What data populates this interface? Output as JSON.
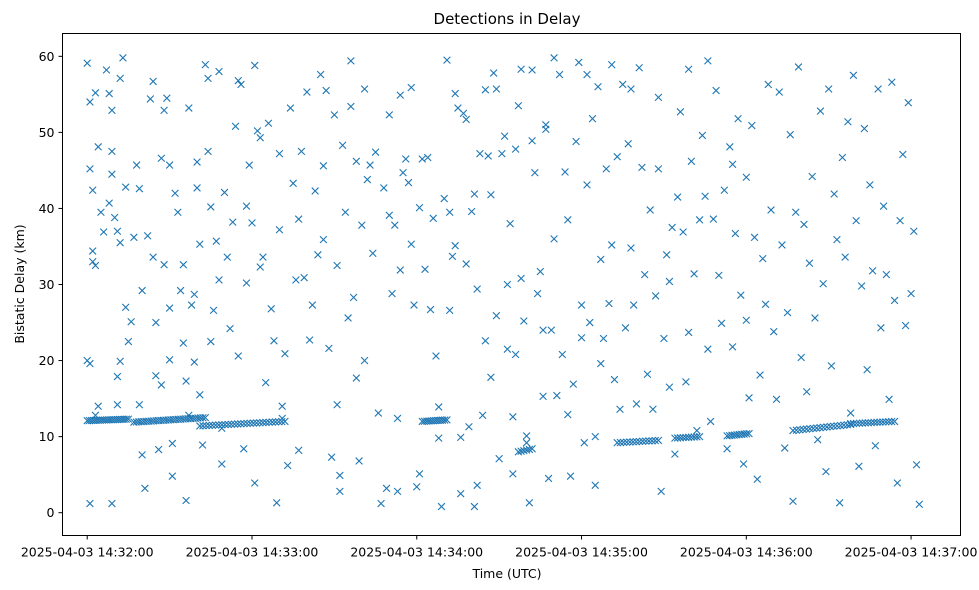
{
  "chart_data": {
    "type": "scatter",
    "title": "Detections in Delay",
    "xlabel": "Time (UTC)",
    "ylabel": "Bistatic Delay (km)",
    "marker": "x",
    "color": "#1f77b4",
    "x_unit": "seconds since 2025-04-03 14:32:00",
    "xlim": [
      -9,
      318
    ],
    "ylim": [
      -3,
      63
    ],
    "x_ticks": [
      {
        "value": 0,
        "label": "2025-04-03 14:32:00"
      },
      {
        "value": 60,
        "label": "2025-04-03 14:33:00"
      },
      {
        "value": 120,
        "label": "2025-04-03 14:34:00"
      },
      {
        "value": 180,
        "label": "2025-04-03 14:35:00"
      },
      {
        "value": 240,
        "label": "2025-04-03 14:36:00"
      },
      {
        "value": 300,
        "label": "2025-04-03 14:37:00"
      }
    ],
    "y_ticks": [
      0,
      10,
      20,
      30,
      40,
      50,
      60
    ],
    "grid": false,
    "legend": "none",
    "track_segments": [
      {
        "t_start": 0,
        "t_end": 15,
        "delay_start": 12.1,
        "delay_end": 12.3,
        "count": 20
      },
      {
        "t_start": 17,
        "t_end": 43,
        "delay_start": 11.9,
        "delay_end": 12.5,
        "count": 30
      },
      {
        "t_start": 41,
        "t_end": 72,
        "delay_start": 11.4,
        "delay_end": 12.0,
        "count": 28
      },
      {
        "t_start": 122,
        "t_end": 131,
        "delay_start": 12.0,
        "delay_end": 12.2,
        "count": 12
      },
      {
        "t_start": 157,
        "t_end": 162,
        "delay_start": 8.0,
        "delay_end": 8.4,
        "count": 6
      },
      {
        "t_start": 193,
        "t_end": 208,
        "delay_start": 9.2,
        "delay_end": 9.5,
        "count": 14
      },
      {
        "t_start": 214,
        "t_end": 223,
        "delay_start": 9.8,
        "delay_end": 10.0,
        "count": 10
      },
      {
        "t_start": 233,
        "t_end": 241,
        "delay_start": 10.1,
        "delay_end": 10.4,
        "count": 10
      },
      {
        "t_start": 257,
        "t_end": 278,
        "delay_start": 10.8,
        "delay_end": 11.6,
        "count": 18
      },
      {
        "t_start": 278,
        "t_end": 294,
        "delay_start": 11.7,
        "delay_end": 12.0,
        "count": 16
      }
    ],
    "scatter_points": [
      [
        0,
        59.1
      ],
      [
        1,
        45.2
      ],
      [
        0,
        20
      ],
      [
        1,
        19.6
      ],
      [
        2,
        34.4
      ],
      [
        2,
        42.4
      ],
      [
        1,
        54
      ],
      [
        3,
        55.2
      ],
      [
        4,
        48.1
      ],
      [
        2,
        33
      ],
      [
        3,
        32.5
      ],
      [
        4,
        14
      ],
      [
        3,
        12.8
      ],
      [
        1,
        1.2
      ],
      [
        5,
        39.5
      ],
      [
        6,
        36.9
      ],
      [
        7,
        58.2
      ],
      [
        8,
        55.1
      ],
      [
        9,
        52.9
      ],
      [
        9,
        44.5
      ],
      [
        9,
        47.5
      ],
      [
        8,
        40.7
      ],
      [
        10,
        38.8
      ],
      [
        11,
        37
      ],
      [
        12,
        35.5
      ],
      [
        12,
        19.9
      ],
      [
        11,
        17.9
      ],
      [
        11,
        14.2
      ],
      [
        9,
        1.2
      ],
      [
        13,
        59.8
      ],
      [
        12,
        57.1
      ],
      [
        14,
        42.8
      ],
      [
        15,
        22.5
      ],
      [
        14,
        27
      ],
      [
        16,
        25.1
      ],
      [
        17,
        36.2
      ],
      [
        18,
        45.7
      ],
      [
        19,
        42.6
      ],
      [
        20,
        29.2
      ],
      [
        19,
        14.2
      ],
      [
        20,
        7.6
      ],
      [
        21,
        3.2
      ],
      [
        22,
        36.4
      ],
      [
        23,
        54.4
      ],
      [
        24,
        56.7
      ],
      [
        24,
        33.6
      ],
      [
        25,
        25
      ],
      [
        25,
        18
      ],
      [
        26,
        8.3
      ],
      [
        27,
        16.8
      ],
      [
        28,
        32.6
      ],
      [
        27,
        46.6
      ],
      [
        28,
        52.9
      ],
      [
        29,
        54.5
      ],
      [
        30,
        45.7
      ],
      [
        30,
        26.9
      ],
      [
        30,
        20.1
      ],
      [
        31,
        9.1
      ],
      [
        31,
        4.8
      ],
      [
        32,
        42
      ],
      [
        33,
        39.5
      ],
      [
        34,
        29.2
      ],
      [
        35,
        32.6
      ],
      [
        35,
        22.3
      ],
      [
        36,
        17.3
      ],
      [
        37,
        12.8
      ],
      [
        36,
        1.6
      ],
      [
        37,
        53.2
      ],
      [
        38,
        27.3
      ],
      [
        39,
        28.7
      ],
      [
        39,
        19.8
      ],
      [
        40,
        46.1
      ],
      [
        40,
        42.7
      ],
      [
        41,
        35.3
      ],
      [
        41,
        15.5
      ],
      [
        42,
        8.9
      ],
      [
        43,
        58.9
      ],
      [
        44,
        57.1
      ],
      [
        44,
        47.5
      ],
      [
        45,
        40.2
      ],
      [
        45,
        22.5
      ],
      [
        46,
        26.6
      ],
      [
        47,
        35.7
      ],
      [
        48,
        58
      ],
      [
        48,
        30.6
      ],
      [
        49,
        11.1
      ],
      [
        49,
        6.4
      ],
      [
        50,
        42.1
      ],
      [
        51,
        33.6
      ],
      [
        52,
        24.2
      ],
      [
        53,
        38.2
      ],
      [
        54,
        50.8
      ],
      [
        55,
        56.8
      ],
      [
        56,
        56.3
      ],
      [
        55,
        20.6
      ],
      [
        57,
        8.4
      ],
      [
        58,
        40.3
      ],
      [
        58,
        30.2
      ],
      [
        59,
        45.7
      ],
      [
        60,
        38.1
      ],
      [
        61,
        58.8
      ],
      [
        61,
        3.9
      ],
      [
        62,
        50.2
      ],
      [
        63,
        49.3
      ],
      [
        63,
        32.3
      ],
      [
        64,
        33.6
      ],
      [
        65,
        17.1
      ],
      [
        66,
        51.2
      ],
      [
        67,
        26.8
      ],
      [
        68,
        22.6
      ],
      [
        69,
        1.3
      ],
      [
        70,
        47.2
      ],
      [
        70,
        37.2
      ],
      [
        71,
        14
      ],
      [
        71,
        12.4
      ],
      [
        72,
        20.9
      ],
      [
        73,
        6.2
      ],
      [
        74,
        53.2
      ],
      [
        75,
        43.3
      ],
      [
        76,
        30.6
      ],
      [
        77,
        38.6
      ],
      [
        77,
        8.2
      ],
      [
        78,
        47.5
      ],
      [
        79,
        30.9
      ],
      [
        80,
        55.3
      ],
      [
        81,
        22.7
      ],
      [
        82,
        27.3
      ],
      [
        83,
        42.3
      ],
      [
        84,
        33.9
      ],
      [
        85,
        57.6
      ],
      [
        86,
        45.6
      ],
      [
        86,
        35.9
      ],
      [
        87,
        55.5
      ],
      [
        88,
        21.6
      ],
      [
        89,
        7.3
      ],
      [
        90,
        52.3
      ],
      [
        91,
        32.5
      ],
      [
        91,
        14.2
      ],
      [
        92,
        4.9
      ],
      [
        92,
        2.8
      ],
      [
        93,
        48.3
      ],
      [
        94,
        39.5
      ],
      [
        95,
        25.6
      ],
      [
        96,
        53.4
      ],
      [
        96,
        59.4
      ],
      [
        97,
        28.3
      ],
      [
        98,
        46.2
      ],
      [
        98,
        17.7
      ],
      [
        99,
        6.8
      ],
      [
        100,
        37.8
      ],
      [
        101,
        55.7
      ],
      [
        101,
        20
      ],
      [
        102,
        43.8
      ],
      [
        103,
        45.7
      ],
      [
        104,
        34.1
      ],
      [
        105,
        47.4
      ],
      [
        106,
        13.1
      ],
      [
        107,
        1.2
      ],
      [
        108,
        42.7
      ],
      [
        109,
        3.2
      ],
      [
        110,
        52.3
      ],
      [
        110,
        39.1
      ],
      [
        111,
        28.8
      ],
      [
        112,
        37.8
      ],
      [
        113,
        12.4
      ],
      [
        113,
        2.8
      ],
      [
        114,
        54.9
      ],
      [
        114,
        31.9
      ],
      [
        115,
        44.7
      ],
      [
        116,
        46.5
      ],
      [
        117,
        43.4
      ],
      [
        118,
        55.9
      ],
      [
        118,
        35.3
      ],
      [
        119,
        27.3
      ],
      [
        120,
        3.4
      ],
      [
        121,
        40.1
      ],
      [
        121,
        5.1
      ],
      [
        122,
        46.5
      ],
      [
        123,
        32
      ],
      [
        124,
        46.7
      ],
      [
        125,
        26.7
      ],
      [
        126,
        38.7
      ],
      [
        127,
        20.6
      ],
      [
        128,
        9.8
      ],
      [
        128,
        13.9
      ],
      [
        129,
        0.8
      ],
      [
        130,
        41.3
      ],
      [
        131,
        59.5
      ],
      [
        132,
        39.5
      ],
      [
        132,
        26.6
      ],
      [
        133,
        33.7
      ],
      [
        134,
        55.1
      ],
      [
        134,
        35.1
      ],
      [
        135,
        53.2
      ],
      [
        136,
        2.5
      ],
      [
        136,
        9.9
      ],
      [
        137,
        52.5
      ],
      [
        138,
        51.7
      ],
      [
        138,
        32.7
      ],
      [
        139,
        11.3
      ],
      [
        140,
        39.6
      ],
      [
        141,
        41.9
      ],
      [
        141,
        0.8
      ],
      [
        142,
        29.4
      ],
      [
        142,
        3.6
      ],
      [
        143,
        47.2
      ],
      [
        144,
        12.8
      ],
      [
        145,
        55.6
      ],
      [
        145,
        22.6
      ],
      [
        146,
        46.9
      ],
      [
        147,
        17.8
      ],
      [
        147,
        41.8
      ],
      [
        148,
        57.8
      ],
      [
        149,
        55.7
      ],
      [
        149,
        25.9
      ],
      [
        150,
        7.1
      ],
      [
        151,
        47.2
      ],
      [
        152,
        49.5
      ],
      [
        153,
        21.5
      ],
      [
        153,
        30
      ],
      [
        154,
        38
      ],
      [
        155,
        12.6
      ],
      [
        155,
        5.1
      ],
      [
        156,
        47.8
      ],
      [
        156,
        20.8
      ],
      [
        157,
        53.5
      ],
      [
        158,
        58.3
      ],
      [
        158,
        30.8
      ],
      [
        159,
        25.2
      ],
      [
        160,
        9.2
      ],
      [
        160,
        10.1
      ],
      [
        161,
        1.3
      ],
      [
        162,
        48.9
      ],
      [
        162,
        58.2
      ],
      [
        163,
        44.7
      ],
      [
        164,
        28.8
      ],
      [
        165,
        31.7
      ],
      [
        166,
        24
      ],
      [
        166,
        15.3
      ],
      [
        167,
        51
      ],
      [
        167,
        50.4
      ],
      [
        168,
        4.5
      ],
      [
        169,
        24
      ],
      [
        170,
        59.8
      ],
      [
        170,
        36
      ],
      [
        171,
        15.4
      ],
      [
        172,
        57.6
      ],
      [
        173,
        20.8
      ],
      [
        174,
        44.8
      ],
      [
        175,
        38.5
      ],
      [
        175,
        12.9
      ],
      [
        176,
        4.8
      ],
      [
        177,
        16.9
      ],
      [
        178,
        48.8
      ],
      [
        179,
        59.2
      ],
      [
        180,
        27.3
      ],
      [
        180,
        23
      ],
      [
        181,
        9.2
      ],
      [
        182,
        57.6
      ],
      [
        182,
        43.1
      ],
      [
        183,
        25
      ],
      [
        184,
        51.8
      ],
      [
        185,
        10
      ],
      [
        185,
        3.6
      ],
      [
        186,
        56
      ],
      [
        187,
        33.3
      ],
      [
        187,
        19.6
      ],
      [
        188,
        22.9
      ],
      [
        189,
        45.2
      ],
      [
        190,
        27.5
      ],
      [
        191,
        58.9
      ],
      [
        191,
        35.2
      ],
      [
        192,
        17.5
      ],
      [
        193,
        46.8
      ],
      [
        194,
        13.6
      ],
      [
        195,
        56.3
      ],
      [
        196,
        24.3
      ],
      [
        197,
        48.5
      ],
      [
        198,
        55.7
      ],
      [
        198,
        34.8
      ],
      [
        199,
        27.3
      ],
      [
        200,
        14.3
      ],
      [
        201,
        58.5
      ],
      [
        202,
        45.4
      ],
      [
        203,
        31.3
      ],
      [
        204,
        18.2
      ],
      [
        205,
        39.8
      ],
      [
        206,
        13.6
      ],
      [
        207,
        28.5
      ],
      [
        208,
        45.2
      ],
      [
        208,
        54.6
      ],
      [
        209,
        2.8
      ],
      [
        210,
        22.9
      ],
      [
        211,
        33.9
      ],
      [
        212,
        30.4
      ],
      [
        212,
        16.5
      ],
      [
        213,
        37.5
      ],
      [
        214,
        7.7
      ],
      [
        215,
        41.5
      ],
      [
        216,
        52.7
      ],
      [
        217,
        36.9
      ],
      [
        218,
        17.2
      ],
      [
        219,
        58.3
      ],
      [
        219,
        23.7
      ],
      [
        220,
        46.2
      ],
      [
        221,
        31.4
      ],
      [
        222,
        10.8
      ],
      [
        223,
        38.5
      ],
      [
        224,
        49.6
      ],
      [
        225,
        41.6
      ],
      [
        226,
        59.4
      ],
      [
        226,
        21.5
      ],
      [
        227,
        12
      ],
      [
        228,
        38.6
      ],
      [
        229,
        55.5
      ],
      [
        230,
        31.2
      ],
      [
        231,
        24.9
      ],
      [
        232,
        42.4
      ],
      [
        233,
        8.4
      ],
      [
        234,
        48.1
      ],
      [
        235,
        45.8
      ],
      [
        235,
        21.8
      ],
      [
        236,
        36.7
      ],
      [
        237,
        51.8
      ],
      [
        238,
        28.6
      ],
      [
        239,
        6.4
      ],
      [
        240,
        44.1
      ],
      [
        240,
        25.3
      ],
      [
        241,
        15.1
      ],
      [
        242,
        50.9
      ],
      [
        243,
        36.2
      ],
      [
        244,
        4.4
      ],
      [
        245,
        18.1
      ],
      [
        246,
        33.4
      ],
      [
        247,
        27.4
      ],
      [
        248,
        56.3
      ],
      [
        249,
        39.8
      ],
      [
        250,
        23.8
      ],
      [
        251,
        14.9
      ],
      [
        252,
        55.3
      ],
      [
        253,
        35.2
      ],
      [
        254,
        8.5
      ],
      [
        255,
        26.3
      ],
      [
        256,
        49.7
      ],
      [
        257,
        1.5
      ],
      [
        258,
        39.5
      ],
      [
        259,
        58.6
      ],
      [
        260,
        20.4
      ],
      [
        261,
        37.9
      ],
      [
        262,
        15.9
      ],
      [
        263,
        32.8
      ],
      [
        264,
        44.2
      ],
      [
        265,
        25.6
      ],
      [
        266,
        9.6
      ],
      [
        267,
        52.8
      ],
      [
        268,
        30.1
      ],
      [
        269,
        5.4
      ],
      [
        270,
        55.7
      ],
      [
        271,
        19.3
      ],
      [
        272,
        41.9
      ],
      [
        273,
        35.9
      ],
      [
        274,
        1.3
      ],
      [
        275,
        46.7
      ],
      [
        276,
        33.6
      ],
      [
        277,
        51.4
      ],
      [
        278,
        13.1
      ],
      [
        279,
        57.5
      ],
      [
        280,
        38.4
      ],
      [
        281,
        6.1
      ],
      [
        282,
        29.8
      ],
      [
        283,
        50.5
      ],
      [
        284,
        18.8
      ],
      [
        285,
        43.1
      ],
      [
        286,
        31.8
      ],
      [
        287,
        8.8
      ],
      [
        288,
        55.7
      ],
      [
        289,
        24.3
      ],
      [
        290,
        40.3
      ],
      [
        291,
        31.3
      ],
      [
        292,
        14.9
      ],
      [
        293,
        56.6
      ],
      [
        294,
        27.9
      ],
      [
        295,
        3.9
      ],
      [
        296,
        38.4
      ],
      [
        297,
        47.1
      ],
      [
        298,
        24.6
      ],
      [
        299,
        53.9
      ],
      [
        300,
        28.8
      ],
      [
        301,
        37
      ],
      [
        302,
        6.3
      ],
      [
        303,
        1.1
      ]
    ]
  }
}
